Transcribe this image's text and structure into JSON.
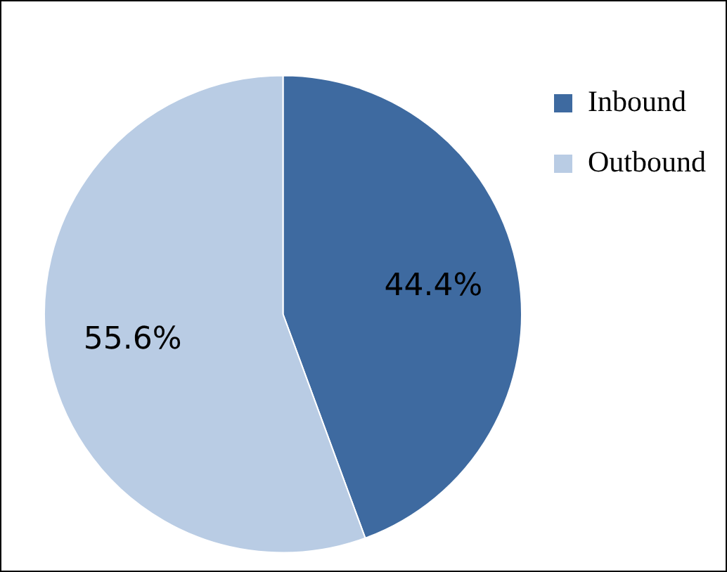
{
  "chart_data": {
    "type": "pie",
    "categories": [
      "Inbound",
      "Outbound"
    ],
    "values": [
      44.4,
      55.6
    ],
    "colors": [
      "#3e6aa0",
      "#b9cce4"
    ],
    "value_labels": [
      "44.4%",
      "55.6%"
    ],
    "legend": "right"
  }
}
